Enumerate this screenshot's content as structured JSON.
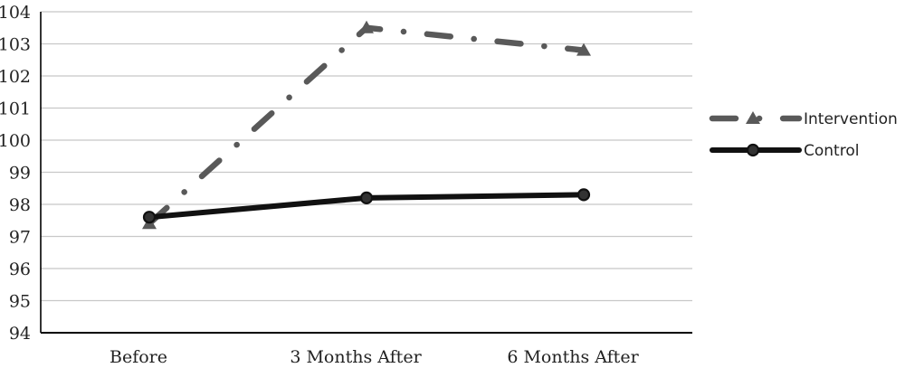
{
  "chart_data": {
    "type": "line",
    "categories": [
      "Before",
      "3 Months After",
      "6 Months After"
    ],
    "ylim": [
      94,
      104
    ],
    "yticks": [
      94,
      95,
      96,
      97,
      98,
      99,
      100,
      101,
      102,
      103,
      104
    ],
    "grid": true,
    "legend_position": "right",
    "series": [
      {
        "name": "Intervention",
        "values": [
          97.4,
          103.5,
          102.8
        ],
        "color": "#595959",
        "marker": "triangle",
        "line_style": "dash-dot"
      },
      {
        "name": "Control",
        "values": [
          97.6,
          98.2,
          98.3
        ],
        "color": "#111111",
        "marker": "circle",
        "line_style": "solid"
      }
    ]
  }
}
